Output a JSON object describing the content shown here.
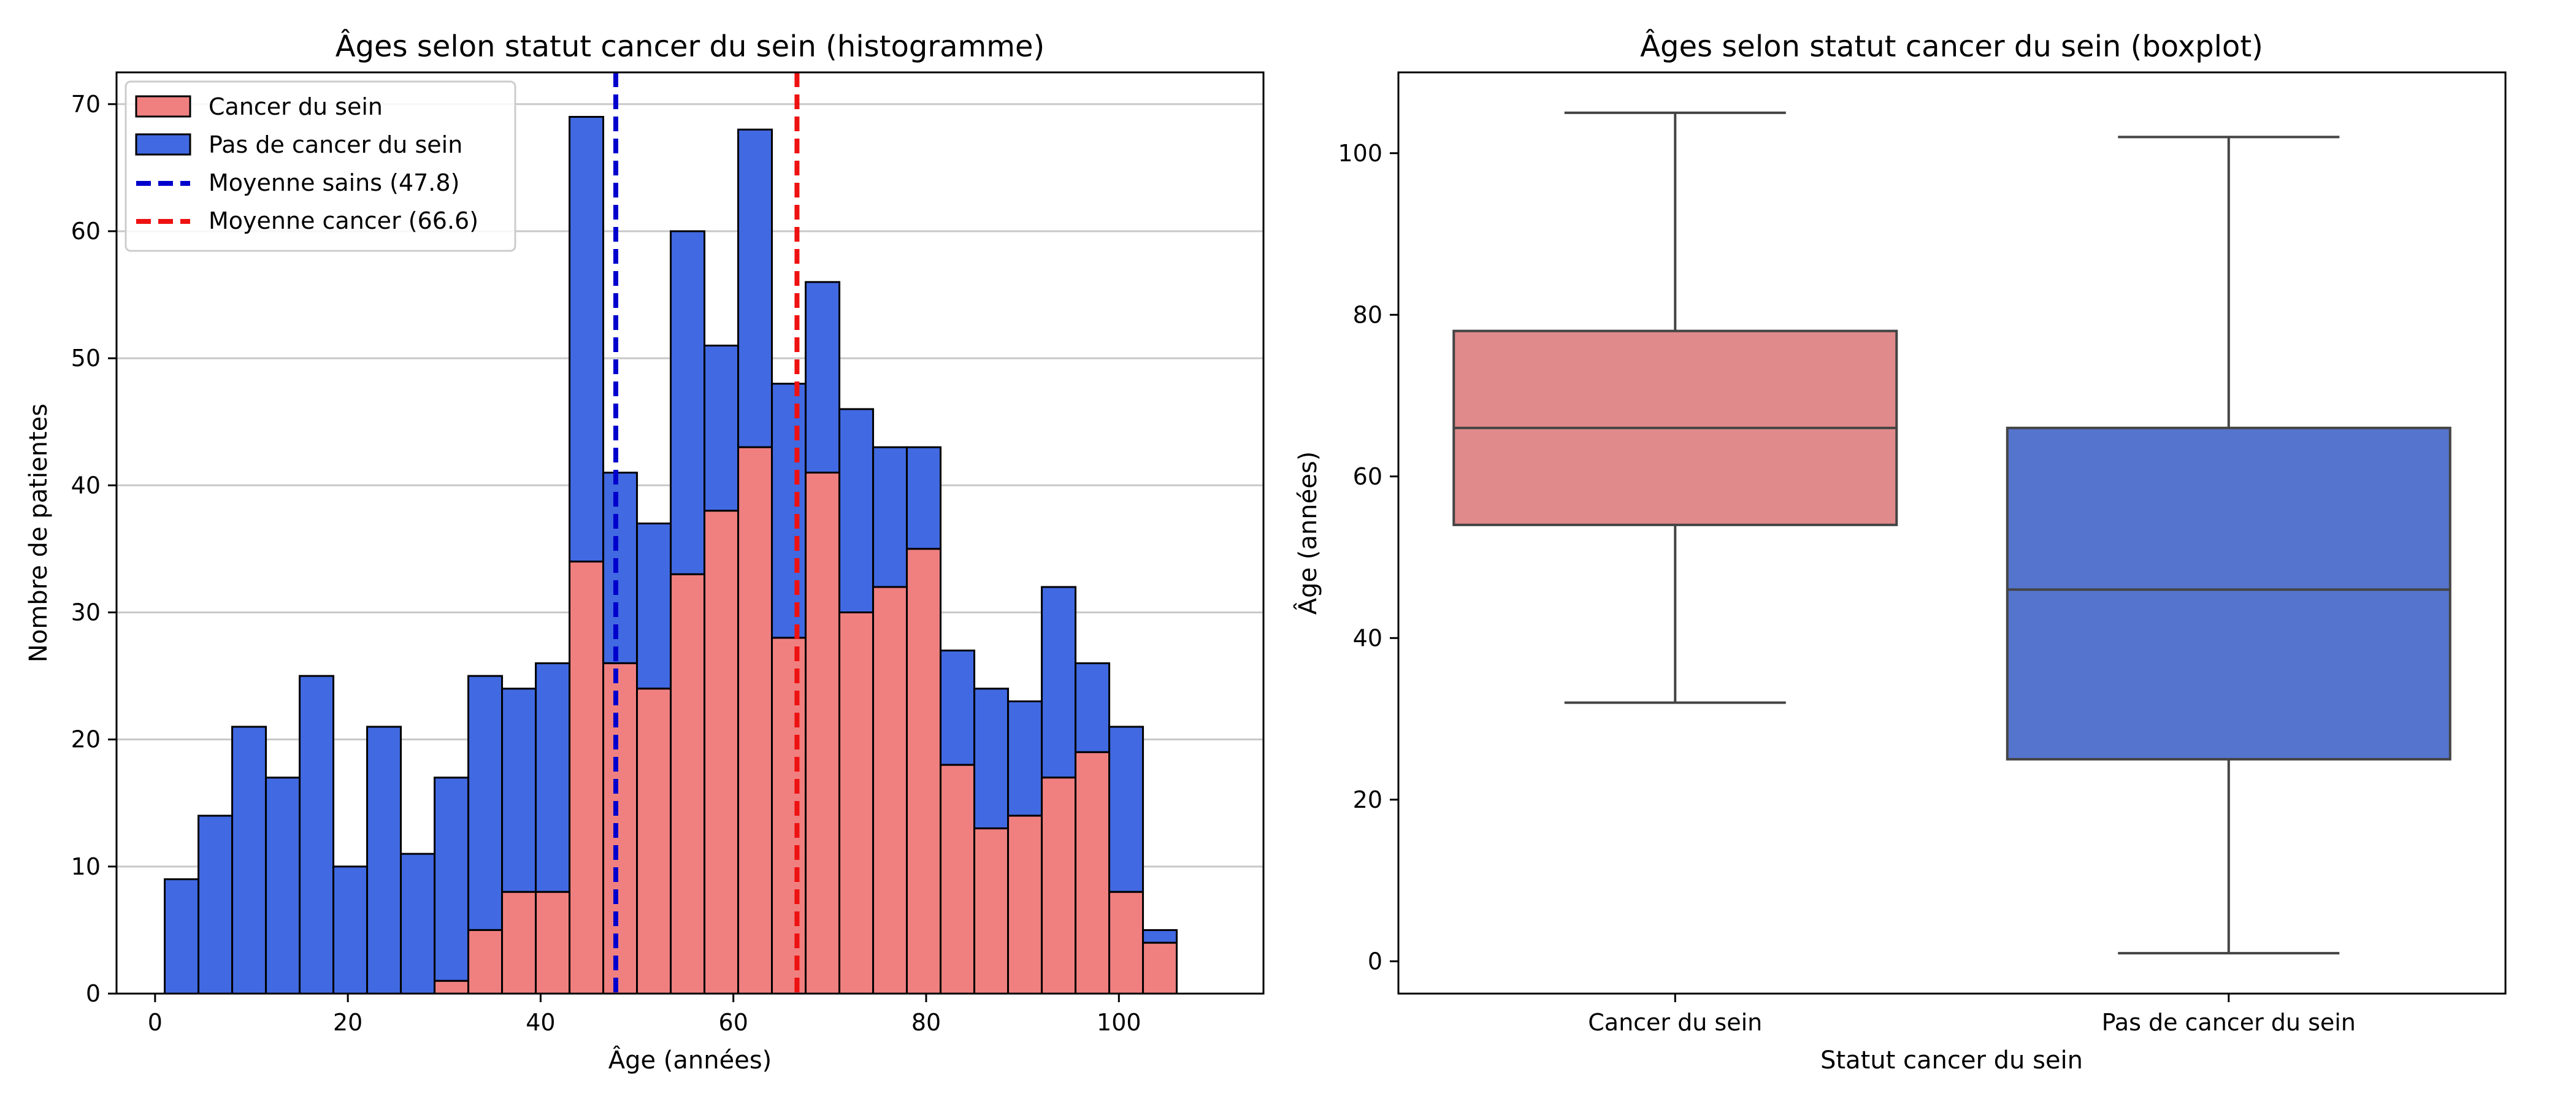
{
  "chart_data": [
    {
      "type": "bar",
      "subtype": "stacked-histogram",
      "title": "Âges selon statut cancer du sein (histogramme)",
      "xlabel": "Âge (années)",
      "ylabel": "Nombre de patientes",
      "xlim": [
        -4,
        115
      ],
      "ylim": [
        0,
        72.5
      ],
      "xticks": [
        0,
        20,
        40,
        60,
        80,
        100
      ],
      "yticks": [
        0,
        10,
        20,
        30,
        40,
        50,
        60,
        70
      ],
      "grid": "y",
      "legend_position": "upper-left",
      "bin_edges": [
        1,
        4.5,
        8,
        11.5,
        15,
        18.5,
        22,
        25.5,
        29,
        32.5,
        36,
        39.5,
        43,
        46.5,
        50,
        53.5,
        57,
        60.5,
        64,
        67.5,
        71,
        74.5,
        78,
        81.5,
        85,
        88.5,
        92,
        95.5,
        99,
        102.5,
        106
      ],
      "series": [
        {
          "name": "Cancer du sein",
          "color": "#f08080",
          "values": [
            0,
            0,
            0,
            0,
            0,
            0,
            0,
            0,
            1,
            5,
            8,
            8,
            34,
            26,
            24,
            33,
            38,
            43,
            28,
            41,
            30,
            32,
            35,
            18,
            13,
            14,
            17,
            19,
            8,
            4
          ]
        },
        {
          "name": "Pas de cancer du sein",
          "color": "#4169e1",
          "values": [
            9,
            14,
            21,
            17,
            25,
            10,
            21,
            11,
            16,
            20,
            16,
            18,
            35,
            15,
            13,
            27,
            13,
            25,
            20,
            15,
            16,
            11,
            8,
            9,
            11,
            9,
            15,
            7,
            13,
            1
          ]
        }
      ],
      "mean_lines": [
        {
          "label": "Moyenne sains (47.8)",
          "value": 47.8,
          "color": "#0000cc"
        },
        {
          "label": "Moyenne cancer (66.6)",
          "value": 66.6,
          "color": "#ee1111"
        }
      ]
    },
    {
      "type": "boxplot",
      "title": "Âges selon statut cancer du sein (boxplot)",
      "xlabel": "Statut cancer du sein",
      "ylabel": "Âge (années)",
      "ylim": [
        -4,
        110
      ],
      "yticks": [
        0,
        20,
        40,
        60,
        80,
        100
      ],
      "grid": false,
      "categories": [
        "Cancer du sein",
        "Pas de cancer du sein"
      ],
      "boxes": [
        {
          "category": "Cancer du sein",
          "whisker_low": 32,
          "q1": 54,
          "median": 66,
          "q3": 78,
          "whisker_high": 105,
          "color": "#e08a8c"
        },
        {
          "category": "Pas de cancer du sein",
          "whisker_low": 1,
          "q1": 25,
          "median": 46,
          "q3": 66,
          "whisker_high": 102,
          "color": "#5574cd"
        }
      ]
    }
  ]
}
